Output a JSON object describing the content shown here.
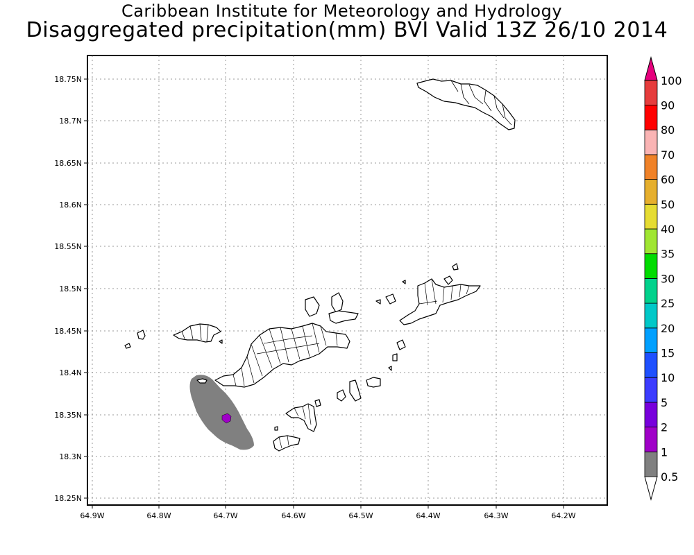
{
  "header": {
    "institute": "Caribbean Institute for Meteorology and Hydrology",
    "product": "Disaggregated precipitation(mm) BVI Valid 13Z 26/10 2014"
  },
  "map": {
    "lat_ticks": [
      "18.75N",
      "18.7N",
      "18.65N",
      "18.6N",
      "18.55N",
      "18.5N",
      "18.45N",
      "18.4N",
      "18.35N",
      "18.3N",
      "18.25N"
    ],
    "lon_ticks": [
      "64.9W",
      "64.8W",
      "64.7W",
      "64.6W",
      "64.5W",
      "64.4W",
      "64.3W",
      "64.2W"
    ],
    "grid": "dotted",
    "precip_areas": [
      {
        "level": "1",
        "description": "grey area southwest of Tortola"
      },
      {
        "level": "2",
        "description": "small purple core near 64.7W 18.345N"
      }
    ]
  },
  "colorbar": {
    "levels": [
      "0.5",
      "1",
      "2",
      "5",
      "10",
      "15",
      "20",
      "25",
      "30",
      "35",
      "40",
      "50",
      "60",
      "70",
      "80",
      "90",
      "100"
    ],
    "colors": [
      "#808080",
      "#a000c8",
      "#7800dc",
      "#3c3cff",
      "#1e50ff",
      "#00a0ff",
      "#00c8c8",
      "#00d28c",
      "#00dc00",
      "#a0e632",
      "#e6dc32",
      "#e6af2d",
      "#f08228",
      "#fab4b4",
      "#ff0000",
      "#e63c3c",
      "#e6007d"
    ],
    "under_color": "#ffffff",
    "over_color": "#e6007d"
  }
}
